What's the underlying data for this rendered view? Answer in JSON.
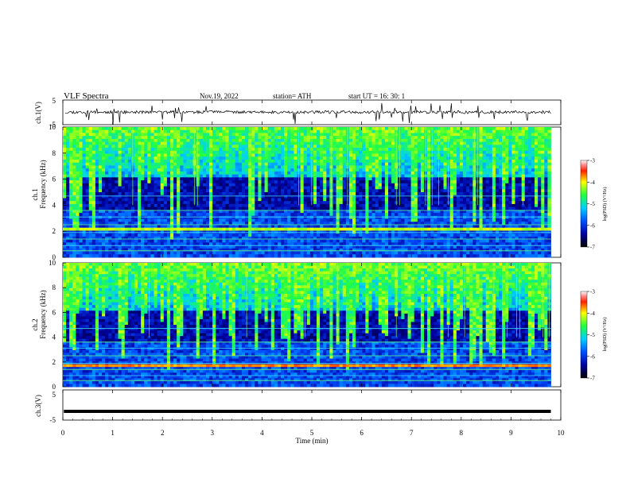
{
  "header": {
    "title": "VLF  Spectra",
    "date": "Nov.19, 2022",
    "station": "station= ATH",
    "start": "start  UT  =   16: 30: 1"
  },
  "chart_data": [
    {
      "type": "line",
      "name": "ch1-waveform",
      "ylabel": "ch.1(V)",
      "ylim": [
        -5,
        5
      ],
      "yticks": [
        "5",
        "-5"
      ],
      "xlim": [
        0,
        10
      ],
      "color": "#000000"
    },
    {
      "type": "heatmap",
      "name": "ch1-spectrogram",
      "ylabel_top": "ch.1",
      "ylabel": "Frequency  (kHz)",
      "ylim": [
        0,
        10
      ],
      "yticks": [
        "0",
        "2",
        "4",
        "6",
        "8",
        "10"
      ],
      "xlim": [
        0,
        9.8
      ],
      "colorbar": {
        "label": "log(PSD) (V²/Hz)",
        "range": [
          -7,
          -3
        ],
        "ticks": [
          "-3",
          "-4",
          "-5",
          "-6",
          "-7"
        ]
      }
    },
    {
      "type": "heatmap",
      "name": "ch2-spectrogram",
      "ylabel_top": "ch.2",
      "ylabel": "Frequency  (kHz)",
      "ylim": [
        0,
        10
      ],
      "yticks": [
        "0",
        "2",
        "4",
        "6",
        "8",
        "10"
      ],
      "xlim": [
        0,
        9.8
      ],
      "colorbar": {
        "label": "log(PSD) (V²/Hz)",
        "range": [
          -7,
          -3
        ],
        "ticks": [
          "-3",
          "-4",
          "-5",
          "-6",
          "-7"
        ]
      }
    },
    {
      "type": "line",
      "name": "ch3-waveform",
      "ylabel": "ch.3(V)",
      "ylim": [
        -5,
        5
      ],
      "yticks": [
        "5",
        "-5"
      ],
      "xlim": [
        0,
        10
      ],
      "value": -2.1,
      "color": "#000000"
    }
  ],
  "xaxis": {
    "label": "Time  (min)",
    "range": [
      0,
      10
    ],
    "ticks": [
      "0",
      "1",
      "2",
      "3",
      "4",
      "5",
      "6",
      "7",
      "8",
      "9",
      "10"
    ]
  }
}
